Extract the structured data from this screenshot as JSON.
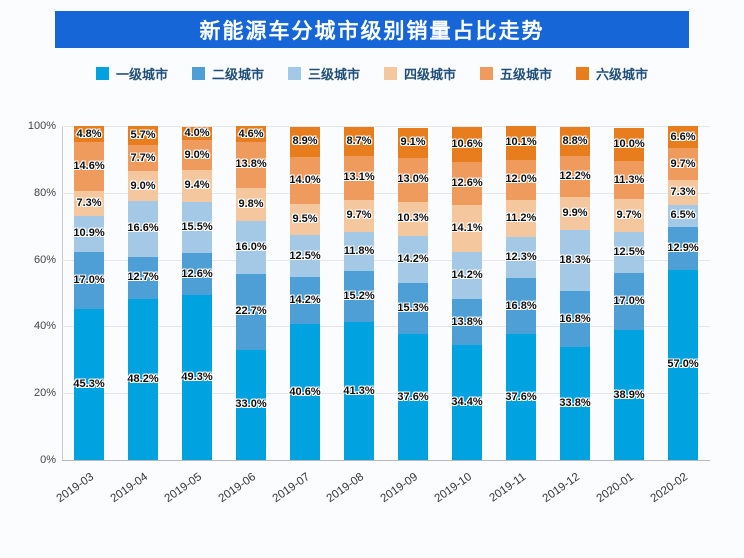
{
  "title": "新能源车分城市级别销量占比走势",
  "colors": {
    "banner_bg": "#1766d8",
    "banner_text": "#ffffff",
    "legend_text": "#1f4e79"
  },
  "chart_data": {
    "type": "bar",
    "stacked": true,
    "percent_stacked": true,
    "title": "新能源车分城市级别销量占比走势",
    "unit": "%",
    "ylim": [
      0,
      100
    ],
    "grid": true,
    "legend_position": "top",
    "y_ticks": [
      "0%",
      "20%",
      "40%",
      "60%",
      "80%",
      "100%"
    ],
    "categories": [
      "2019-03",
      "2019-04",
      "2019-05",
      "2019-06",
      "2019-07",
      "2019-08",
      "2019-09",
      "2019-10",
      "2019-11",
      "2019-12",
      "2020-01",
      "2020-02"
    ],
    "series": [
      {
        "name": "一级城市",
        "color": "#00a3e0",
        "values": [
          45.3,
          48.2,
          49.3,
          33.0,
          40.6,
          41.3,
          37.6,
          34.4,
          37.6,
          33.8,
          38.9,
          57.0
        ]
      },
      {
        "name": "二级城市",
        "color": "#4d9fd6",
        "values": [
          17.0,
          12.7,
          12.6,
          22.7,
          14.2,
          15.2,
          15.3,
          13.8,
          16.8,
          16.8,
          17.0,
          12.9
        ]
      },
      {
        "name": "三级城市",
        "color": "#a3c9e6",
        "values": [
          10.9,
          16.6,
          15.5,
          16.0,
          12.5,
          11.8,
          14.2,
          14.2,
          12.3,
          18.3,
          12.5,
          6.5
        ]
      },
      {
        "name": "四级城市",
        "color": "#f5c79e",
        "values": [
          7.3,
          9.0,
          9.4,
          9.8,
          9.5,
          9.7,
          10.3,
          14.1,
          11.2,
          9.9,
          9.7,
          7.3
        ]
      },
      {
        "name": "五级城市",
        "color": "#ef9b5d",
        "values": [
          14.6,
          7.7,
          9.0,
          13.8,
          14.0,
          13.1,
          13.0,
          12.6,
          12.0,
          12.2,
          11.3,
          9.7
        ]
      },
      {
        "name": "六级城市",
        "color": "#e87d1e",
        "values": [
          4.8,
          5.7,
          4.0,
          4.6,
          8.9,
          8.7,
          9.1,
          10.6,
          10.1,
          8.8,
          10.0,
          6.6
        ]
      }
    ]
  }
}
